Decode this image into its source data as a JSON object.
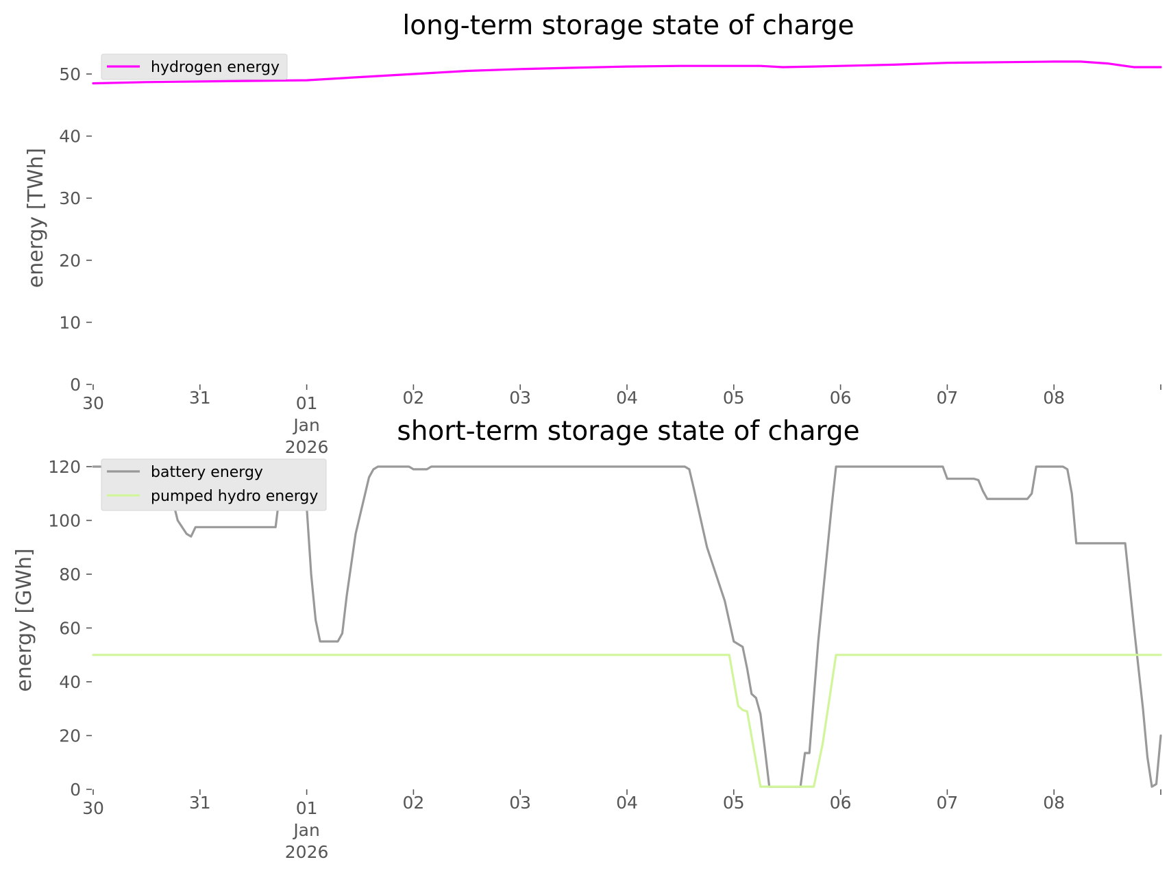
{
  "chart_data": [
    {
      "type": "line",
      "title": "long-term storage state of charge",
      "xlabel": "",
      "ylabel": "energy [TWh]",
      "xlim": [
        "2025-12-30",
        "2026-01-08 24:00"
      ],
      "ylim": [
        0,
        55
      ],
      "yticks": [
        0,
        10,
        20,
        30,
        40,
        50
      ],
      "xticks": [
        {
          "date": "2025-12-30",
          "label": "30"
        },
        {
          "date": "2025-12-31",
          "label": "31"
        },
        {
          "date": "2026-01-01",
          "label": "01",
          "sub": [
            "Jan",
            "2026"
          ]
        },
        {
          "date": "2026-01-02",
          "label": "02"
        },
        {
          "date": "2026-01-03",
          "label": "03"
        },
        {
          "date": "2026-01-04",
          "label": "04"
        },
        {
          "date": "2026-01-05",
          "label": "05"
        },
        {
          "date": "2026-01-06",
          "label": "06"
        },
        {
          "date": "2026-01-07",
          "label": "07"
        },
        {
          "date": "2026-01-08",
          "label": "08"
        }
      ],
      "grid": false,
      "legend_position": "upper-left",
      "series": [
        {
          "name": "hydrogen energy",
          "color": "#ff00ff",
          "points": [
            [
              "2025-12-30 00:00",
              48.5
            ],
            [
              "2025-12-30 12:00",
              48.7
            ],
            [
              "2025-12-31 00:00",
              48.8
            ],
            [
              "2025-12-31 12:00",
              48.9
            ],
            [
              "2026-01-01 00:00",
              49.0
            ],
            [
              "2026-01-01 12:00",
              49.5
            ],
            [
              "2026-01-02 00:00",
              50.0
            ],
            [
              "2026-01-02 12:00",
              50.5
            ],
            [
              "2026-01-03 00:00",
              50.8
            ],
            [
              "2026-01-03 12:00",
              51.0
            ],
            [
              "2026-01-04 00:00",
              51.2
            ],
            [
              "2026-01-04 12:00",
              51.3
            ],
            [
              "2026-01-05 00:00",
              51.3
            ],
            [
              "2026-01-05 06:00",
              51.3
            ],
            [
              "2026-01-05 11:00",
              51.1
            ],
            [
              "2026-01-05 18:00",
              51.2
            ],
            [
              "2026-01-06 00:00",
              51.3
            ],
            [
              "2026-01-06 12:00",
              51.5
            ],
            [
              "2026-01-07 00:00",
              51.8
            ],
            [
              "2026-01-07 12:00",
              51.9
            ],
            [
              "2026-01-08 00:00",
              52.0
            ],
            [
              "2026-01-08 06:00",
              52.0
            ],
            [
              "2026-01-08 12:00",
              51.7
            ],
            [
              "2026-01-08 18:00",
              51.1
            ],
            [
              "2026-01-08 24:00",
              51.1
            ]
          ]
        }
      ]
    },
    {
      "type": "line",
      "title": "short-term storage state of charge",
      "xlabel": "",
      "ylabel": "energy [GWh]",
      "xlim": [
        "2025-12-30",
        "2026-01-08 24:00"
      ],
      "ylim": [
        0,
        120
      ],
      "yticks": [
        0,
        20,
        40,
        60,
        80,
        100,
        120
      ],
      "xticks": [
        {
          "date": "2025-12-30",
          "label": "30"
        },
        {
          "date": "2025-12-31",
          "label": "31"
        },
        {
          "date": "2026-01-01",
          "label": "01",
          "sub": [
            "Jan",
            "2026"
          ]
        },
        {
          "date": "2026-01-02",
          "label": "02"
        },
        {
          "date": "2026-01-03",
          "label": "03"
        },
        {
          "date": "2026-01-04",
          "label": "04"
        },
        {
          "date": "2026-01-05",
          "label": "05"
        },
        {
          "date": "2026-01-06",
          "label": "06"
        },
        {
          "date": "2026-01-07",
          "label": "07"
        },
        {
          "date": "2026-01-08",
          "label": "08"
        }
      ],
      "grid": false,
      "legend_position": "upper-left",
      "series": [
        {
          "name": "battery energy",
          "color": "#999999",
          "points": [
            [
              "2025-12-30 00:00",
              120
            ],
            [
              "2025-12-30 16:00",
              120
            ],
            [
              "2025-12-30 19:00",
              100
            ],
            [
              "2025-12-30 21:00",
              95
            ],
            [
              "2025-12-30 22:00",
              94
            ],
            [
              "2025-12-30 23:00",
              97.5
            ],
            [
              "2025-12-31 06:00",
              97.5
            ],
            [
              "2025-12-31 17:00",
              97.5
            ],
            [
              "2025-12-31 18:00",
              111
            ],
            [
              "2025-12-31 21:00",
              111
            ],
            [
              "2025-12-31 22:00",
              120
            ],
            [
              "2025-12-31 23:00",
              120
            ],
            [
              "2026-01-01 00:00",
              105
            ],
            [
              "2026-01-01 01:00",
              80
            ],
            [
              "2026-01-01 02:00",
              63
            ],
            [
              "2026-01-01 03:00",
              55
            ],
            [
              "2026-01-01 07:00",
              55
            ],
            [
              "2026-01-01 08:00",
              58
            ],
            [
              "2026-01-01 09:00",
              72
            ],
            [
              "2026-01-01 11:00",
              95
            ],
            [
              "2026-01-01 14:00",
              116
            ],
            [
              "2026-01-01 15:00",
              119
            ],
            [
              "2026-01-01 16:00",
              120
            ],
            [
              "2026-01-01 23:00",
              120
            ],
            [
              "2026-01-02 00:00",
              119
            ],
            [
              "2026-01-02 03:00",
              119
            ],
            [
              "2026-01-02 04:00",
              120
            ],
            [
              "2026-01-04 13:00",
              120
            ],
            [
              "2026-01-04 14:00",
              119
            ],
            [
              "2026-01-04 15:00",
              112
            ],
            [
              "2026-01-04 18:00",
              90
            ],
            [
              "2026-01-04 20:00",
              80
            ],
            [
              "2026-01-04 22:00",
              70
            ],
            [
              "2026-01-05 00:00",
              55
            ],
            [
              "2026-01-05 02:00",
              53
            ],
            [
              "2026-01-05 03:00",
              45
            ],
            [
              "2026-01-05 04:00",
              35.5
            ],
            [
              "2026-01-05 05:00",
              34
            ],
            [
              "2026-01-05 06:00",
              28
            ],
            [
              "2026-01-05 07:00",
              15
            ],
            [
              "2026-01-05 08:00",
              1
            ],
            [
              "2026-01-05 15:00",
              1
            ],
            [
              "2026-01-05 16:00",
              13.5
            ],
            [
              "2026-01-05 17:00",
              13.5
            ],
            [
              "2026-01-05 19:00",
              55
            ],
            [
              "2026-01-05 22:00",
              105
            ],
            [
              "2026-01-05 23:00",
              120
            ],
            [
              "2026-01-06 23:00",
              120
            ],
            [
              "2026-01-07 00:00",
              115.5
            ],
            [
              "2026-01-07 06:00",
              115.5
            ],
            [
              "2026-01-07 07:00",
              115
            ],
            [
              "2026-01-07 08:00",
              111
            ],
            [
              "2026-01-07 09:00",
              108
            ],
            [
              "2026-01-07 18:00",
              108
            ],
            [
              "2026-01-07 19:00",
              110
            ],
            [
              "2026-01-07 20:00",
              120
            ],
            [
              "2026-01-08 02:00",
              120
            ],
            [
              "2026-01-08 03:00",
              119
            ],
            [
              "2026-01-08 04:00",
              110
            ],
            [
              "2026-01-08 05:00",
              91.5
            ],
            [
              "2026-01-08 16:00",
              91.5
            ],
            [
              "2026-01-08 18:00",
              60
            ],
            [
              "2026-01-08 20:00",
              30
            ],
            [
              "2026-01-08 21:00",
              12
            ],
            [
              "2026-01-08 22:00",
              1
            ],
            [
              "2026-01-08 23:00",
              2
            ],
            [
              "2026-01-08 24:00",
              20
            ]
          ]
        },
        {
          "name": "pumped hydro energy",
          "color": "#d0f59a",
          "points": [
            [
              "2025-12-30 00:00",
              50
            ],
            [
              "2026-01-04 23:00",
              50
            ],
            [
              "2026-01-05 01:00",
              31
            ],
            [
              "2026-01-05 02:00",
              29.5
            ],
            [
              "2026-01-05 03:00",
              29
            ],
            [
              "2026-01-05 06:00",
              1
            ],
            [
              "2026-01-05 18:00",
              1
            ],
            [
              "2026-01-05 20:00",
              17
            ],
            [
              "2026-01-05 23:00",
              50
            ],
            [
              "2026-01-08 24:00",
              50
            ]
          ]
        }
      ]
    }
  ]
}
